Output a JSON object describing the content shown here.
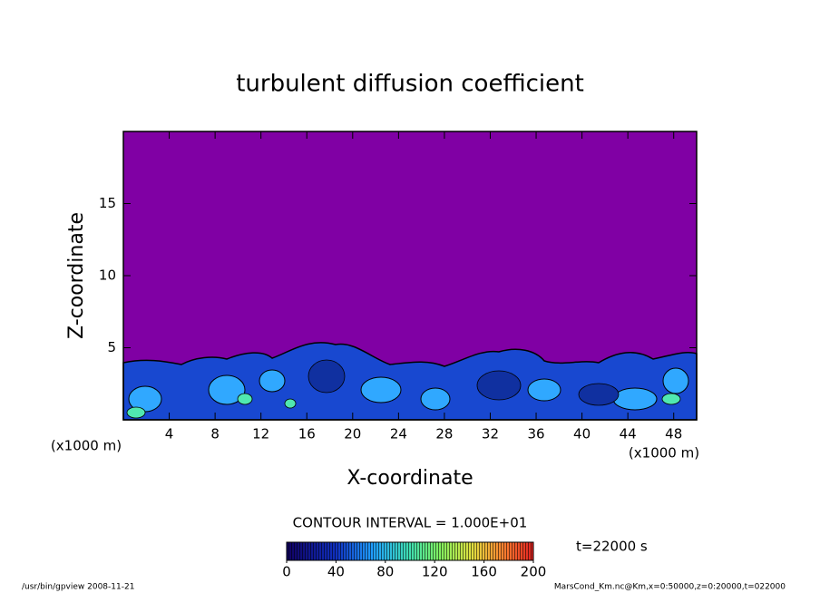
{
  "chart_data": {
    "type": "contour",
    "title": "turbulent diffusion coefficient",
    "x_label": "X-coordinate",
    "y_label": "Z-coordinate",
    "x_unit": "(x1000 m)",
    "y_unit": "(x1000 m)",
    "xlim": [
      0,
      50
    ],
    "xticks": [
      4,
      8,
      12,
      16,
      20,
      24,
      28,
      32,
      36,
      40,
      44,
      48
    ],
    "ylim": [
      0,
      20
    ],
    "yticks": [
      5,
      10,
      15
    ],
    "contour_interval": "CONTOUR INTERVAL = 1.000E+01",
    "time": "t=22000 s",
    "colorbar": {
      "lim": [
        0,
        200
      ],
      "ticks": [
        0,
        40,
        80,
        120,
        160,
        200
      ]
    },
    "footer_left": "/usr/bin/gpview  2008-11-21",
    "footer_right": "MarsCond_Km.nc@Km,x=0:50000,z=0:20000,t=022000"
  }
}
